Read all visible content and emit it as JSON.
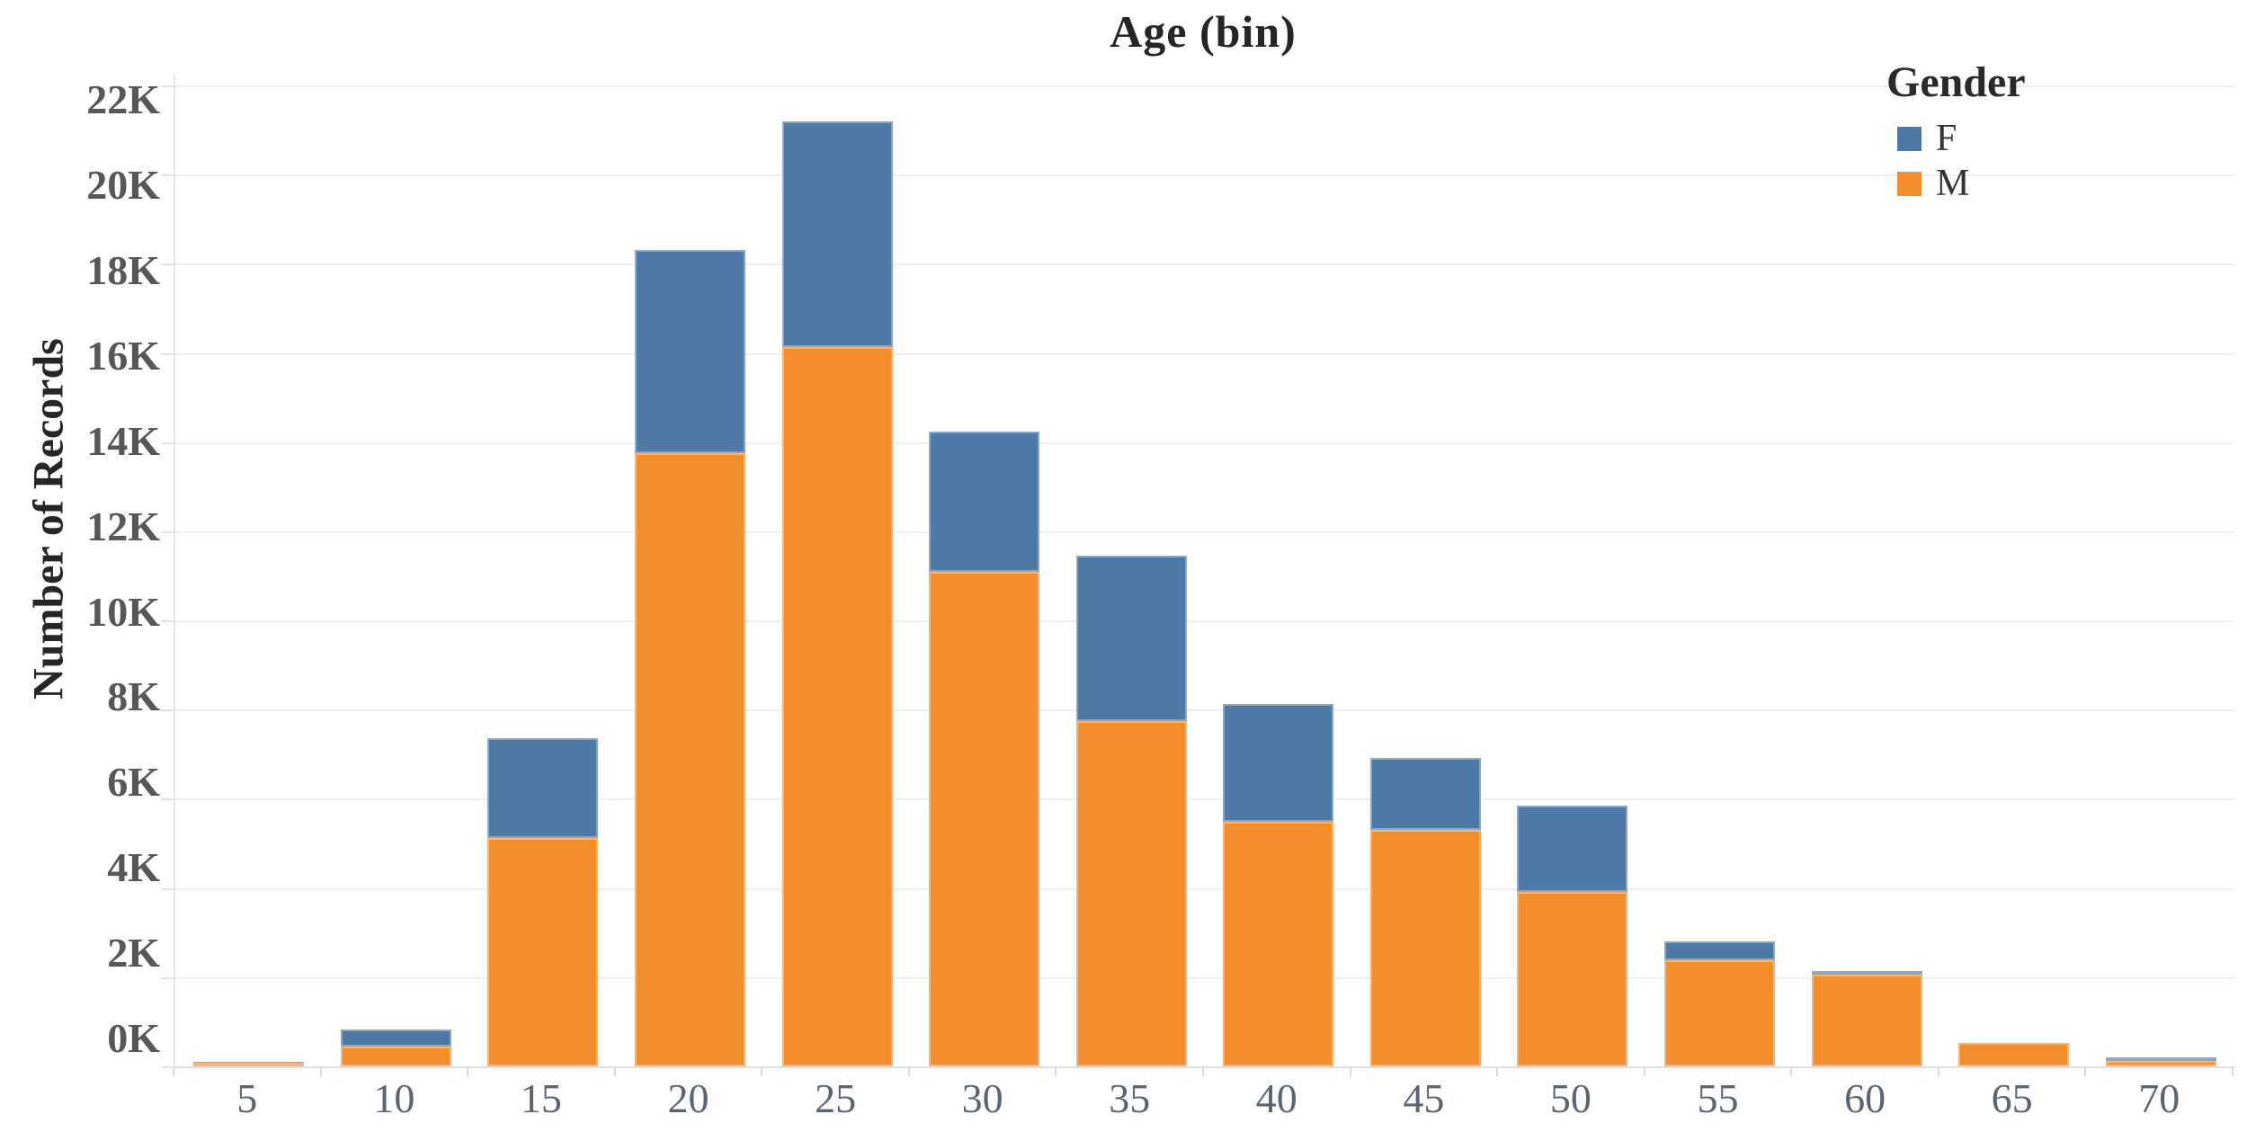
{
  "title": "Age (bin)",
  "y_axis": {
    "label": "Number of Records",
    "tick_labels": [
      "0K",
      "2K",
      "4K",
      "6K",
      "8K",
      "10K",
      "12K",
      "14K",
      "16K",
      "18K",
      "20K",
      "22K"
    ],
    "tick_values": [
      0,
      2000,
      4000,
      6000,
      8000,
      10000,
      12000,
      14000,
      16000,
      18000,
      20000,
      22000
    ]
  },
  "x_axis": {
    "tick_labels": [
      "5",
      "10",
      "15",
      "20",
      "25",
      "30",
      "35",
      "40",
      "45",
      "50",
      "55",
      "60",
      "65",
      "70"
    ]
  },
  "legend": {
    "title": "Gender",
    "items": [
      {
        "label": "F",
        "color": "#4e79a7"
      },
      {
        "label": "M",
        "color": "#f28e2b"
      }
    ]
  },
  "colors": {
    "female": "#4e79a7",
    "male": "#f28e2b",
    "gridline": "#efefef",
    "axis_line": "#e0e0e0",
    "y_tick_text": "#575757",
    "x_tick_text": "#5a6472",
    "title_text": "#262626"
  },
  "chart_data": {
    "type": "bar",
    "stacked": true,
    "title": "Age (bin)",
    "xlabel": "Age (bin)",
    "ylabel": "Number of Records",
    "categories": [
      5,
      10,
      15,
      20,
      25,
      30,
      35,
      40,
      45,
      50,
      55,
      60,
      65,
      70
    ],
    "series": [
      {
        "name": "M",
        "color": "#f28e2b",
        "values": [
          80,
          440,
          5120,
          13750,
          16130,
          11090,
          7740,
          5480,
          5300,
          3910,
          2380,
          2050,
          520,
          120
        ]
      },
      {
        "name": "F",
        "color": "#4e79a7",
        "values": [
          20,
          390,
          2240,
          4560,
          5060,
          3140,
          3710,
          2640,
          1620,
          1940,
          420,
          90,
          0,
          80
        ]
      }
    ],
    "stack_order_bottom_to_top": [
      "M",
      "F"
    ],
    "totals": [
      100,
      830,
      7360,
      18310,
      21190,
      14230,
      11450,
      8120,
      6920,
      5850,
      2800,
      2140,
      520,
      200
    ],
    "ylim": [
      0,
      22500
    ],
    "grid": true,
    "legend_position": "top-right"
  }
}
